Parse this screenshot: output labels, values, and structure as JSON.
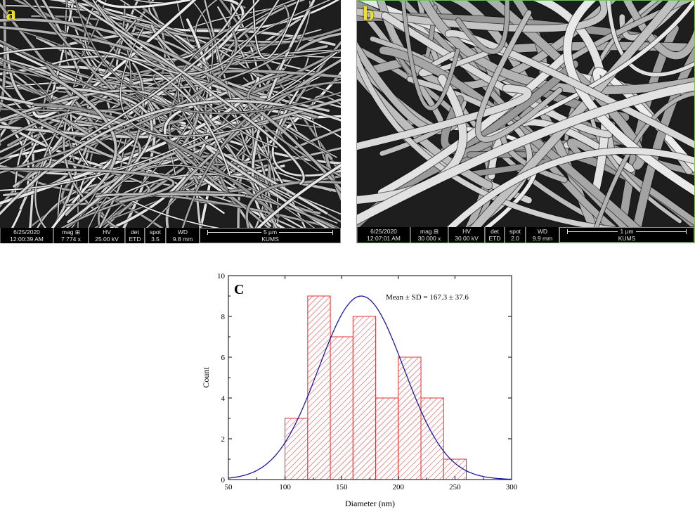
{
  "panels": {
    "a": {
      "letter": "a",
      "databar": {
        "date": "6/25/2020",
        "time": "12:00:39 AM",
        "mag_label": "mag ⊞",
        "mag": "7 774 x",
        "hv_label": "HV",
        "hv": "25.00 kV",
        "det_label": "det",
        "det": "ETD",
        "spot_label": "spot",
        "spot": "3.5",
        "wd_label": "WD",
        "wd": "9.8 mm",
        "scale": "5 µm",
        "lab": "KUMS"
      }
    },
    "b": {
      "letter": "b",
      "databar": {
        "date": "6/25/2020",
        "time": "12:07:01 AM",
        "mag_label": "mag ⊞",
        "mag": "30 000 x",
        "hv_label": "HV",
        "hv": "30.00 kV",
        "det_label": "det",
        "det": "ETD",
        "spot_label": "spot",
        "spot": "2.0",
        "wd_label": "WD",
        "wd": "9.9 mm",
        "scale": "1 µm",
        "lab": "KUMS"
      }
    }
  },
  "chart_data": {
    "type": "bar",
    "panel_letter": "C",
    "xlabel": "Diameter (nm)",
    "ylabel": "Count",
    "xlim": [
      50,
      300
    ],
    "ylim": [
      0,
      10
    ],
    "xticks": [
      50,
      100,
      150,
      200,
      250,
      300
    ],
    "yticks": [
      0,
      2,
      4,
      6,
      8,
      10
    ],
    "bin_width": 20,
    "bins": [
      {
        "start": 100,
        "end": 120,
        "count": 3
      },
      {
        "start": 120,
        "end": 140,
        "count": 9
      },
      {
        "start": 140,
        "end": 160,
        "count": 7
      },
      {
        "start": 160,
        "end": 180,
        "count": 8
      },
      {
        "start": 180,
        "end": 200,
        "count": 4
      },
      {
        "start": 200,
        "end": 220,
        "count": 6
      },
      {
        "start": 220,
        "end": 240,
        "count": 4
      },
      {
        "start": 240,
        "end": 260,
        "count": 1
      }
    ],
    "fit": {
      "type": "normal",
      "mean": 167.3,
      "sd": 37.6,
      "peak": 9.0
    },
    "annotation": "Mean ± SD = 167.3  ± 37.6",
    "colors": {
      "bar": "#e03030",
      "curve": "#1a1aa8"
    }
  }
}
